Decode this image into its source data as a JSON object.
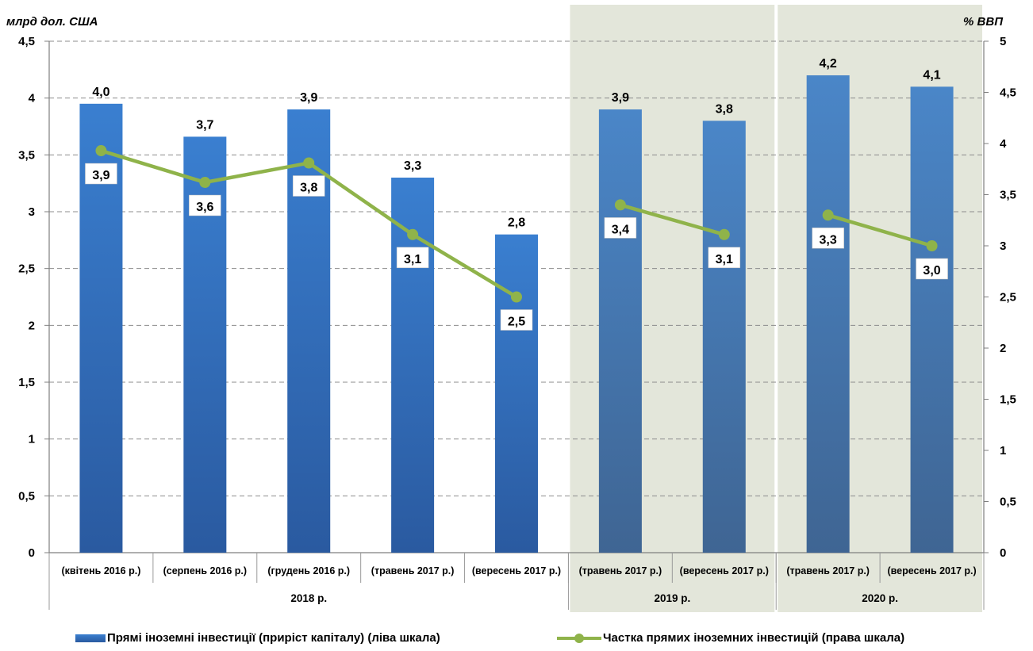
{
  "chart_data": {
    "type": "bar+line",
    "left_axis_title": "млрд дол. США",
    "right_axis_title": "% ВВП",
    "left_ticks": [
      "0",
      "0,5",
      "1",
      "1,5",
      "2",
      "2,5",
      "3",
      "3,5",
      "4",
      "4,5"
    ],
    "right_ticks": [
      "0",
      "0,5",
      "1",
      "1,5",
      "2",
      "2,5",
      "3",
      "3,5",
      "4",
      "4,5",
      "5"
    ],
    "ylim_left": [
      0,
      4.5
    ],
    "ylim_right": [
      0,
      5
    ],
    "categories": [
      "(квітень 2016 р.)",
      "(серпень 2016 р.)",
      "(грудень 2016 р.)",
      "(травень 2017 р.)",
      "(вересень 2017 р.)",
      "(травень 2017 р.)",
      "(вересень 2017 р.)",
      "(травень 2017 р.)",
      "(вересень 2017 р.)"
    ],
    "groups": [
      {
        "label": "2018 р.",
        "count": 5,
        "shaded": false
      },
      {
        "label": "2019 р.",
        "count": 2,
        "shaded": true
      },
      {
        "label": "2020 р.",
        "count": 2,
        "shaded": true
      }
    ],
    "series": [
      {
        "name": "Прямі іноземні інвестиції (приріст капіталу) (ліва шкала)",
        "kind": "bar",
        "axis": "left",
        "values": [
          3.95,
          3.66,
          3.9,
          3.3,
          2.8,
          3.9,
          3.8,
          4.2,
          4.1
        ],
        "labels": [
          "4,0",
          "3,7",
          "3,9",
          "3,3",
          "2,8",
          "3,9",
          "3,8",
          "4,2",
          "4,1"
        ]
      },
      {
        "name": "Частка прямих іноземних інвестицій (права шкала)",
        "kind": "line",
        "axis": "right",
        "values": [
          3.93,
          3.62,
          3.81,
          3.11,
          2.5,
          3.4,
          3.11,
          3.3,
          3.0
        ],
        "labels": [
          "3,9",
          "3,6",
          "3,8",
          "3,1",
          "2,5",
          "3,4",
          "3,1",
          "3,3",
          "3,0"
        ]
      }
    ],
    "colors": {
      "bar_top": "#3a7fd0",
      "bar_bottom": "#2a5aa0",
      "bar_shaded_top": "#4a86c8",
      "bar_shaded_bottom": "#3f6593",
      "line": "#8fb34a",
      "shade": "#e3e6da",
      "grid": "#8c8c8c"
    },
    "grid": "dashed-horizontal",
    "legend_position": "bottom"
  }
}
